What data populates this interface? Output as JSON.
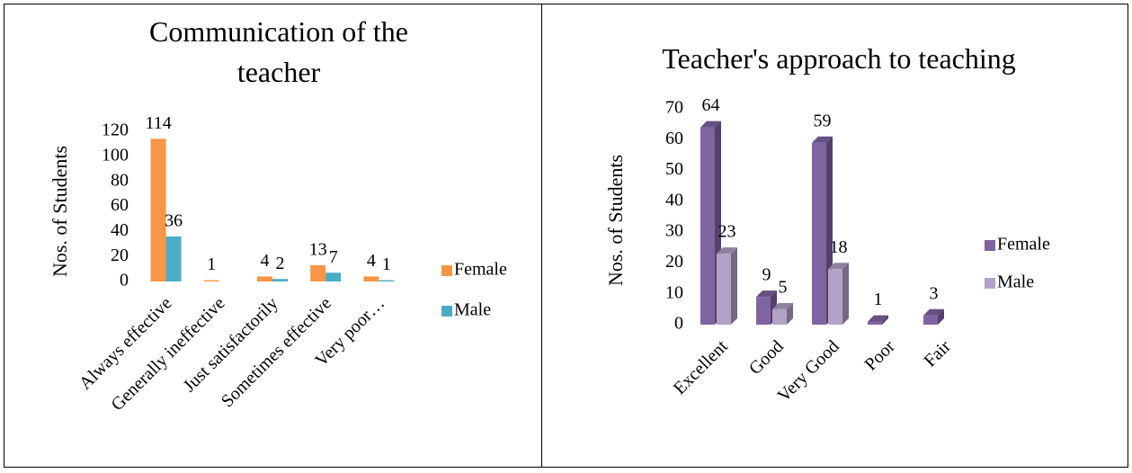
{
  "chart_data": [
    {
      "type": "bar",
      "title": "Communication of the teacher",
      "ylabel": "Nos. of Students",
      "categories": [
        "Always effective",
        "Generally ineffective",
        "Just satisfactorily",
        "Sometimes effective",
        "Very poor…"
      ],
      "series": [
        {
          "name": "Female",
          "color": "#f79646",
          "values": [
            114,
            1,
            4,
            13,
            4
          ]
        },
        {
          "name": "Male",
          "color": "#4bacc6",
          "values": [
            36,
            null,
            2,
            7,
            1
          ]
        }
      ],
      "ylim": [
        0,
        120
      ],
      "yticks": [
        0,
        20,
        40,
        60,
        80,
        100,
        120
      ],
      "legend": "right",
      "three_d": false
    },
    {
      "type": "bar",
      "title": "Teacher's approach to teaching",
      "ylabel": "Nos. of Students",
      "categories": [
        "Excellent",
        "Good",
        "Very Good",
        "Poor",
        "Fair"
      ],
      "series": [
        {
          "name": "Female",
          "color": "#8064a2",
          "values": [
            64,
            9,
            59,
            1,
            3
          ]
        },
        {
          "name": "Male",
          "color": "#b3a2c7",
          "values": [
            23,
            5,
            18,
            null,
            null
          ]
        }
      ],
      "ylim": [
        0,
        70
      ],
      "yticks": [
        0,
        10,
        20,
        30,
        40,
        50,
        60,
        70
      ],
      "legend": "right",
      "three_d": true
    }
  ]
}
